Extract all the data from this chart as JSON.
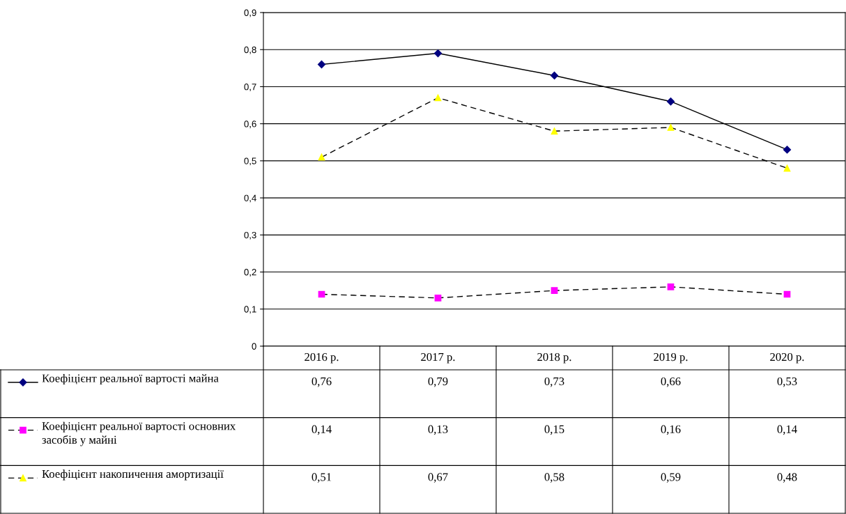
{
  "chart_data": {
    "type": "line",
    "categories": [
      "2016 р.",
      "2017 р.",
      "2018 р.",
      "2019 р.",
      "2020 р."
    ],
    "ylim": [
      0,
      0.9
    ],
    "yticks": [
      0,
      {
        "value": 0.1,
        "label": "0,1"
      },
      {
        "value": 0.2,
        "label": "0,2"
      },
      {
        "value": 0.3,
        "label": "0,3"
      },
      {
        "value": 0.4,
        "label": "0,4"
      },
      {
        "value": 0.5,
        "label": "0,5"
      },
      {
        "value": 0.6,
        "label": "0,6"
      },
      {
        "value": 0.7,
        "label": "0,7"
      },
      {
        "value": 0.8,
        "label": "0,8"
      },
      {
        "value": 0.9,
        "label": "0,9"
      }
    ],
    "grid": "y",
    "legend": "bottom left",
    "series": [
      {
        "name": "Коефіцієнт реальної вартості майна",
        "color": "#000080",
        "marker": "diamond",
        "line_style": "solid",
        "values": [
          0.76,
          0.79,
          0.73,
          0.66,
          0.53
        ],
        "value_labels": [
          "0,76",
          "0,79",
          "0,73",
          "0,66",
          "0,53"
        ]
      },
      {
        "name": "Коефіцієнт реальної вартості основних засобів у майні",
        "color": "#ff00ff",
        "marker": "square",
        "line_style": "dashed",
        "values": [
          0.14,
          0.13,
          0.15,
          0.16,
          0.14
        ],
        "value_labels": [
          "0,14",
          "0,13",
          "0,15",
          "0,16",
          "0,14"
        ]
      },
      {
        "name": "Коефіцієнт накопичення амортизації",
        "color": "#ffff00",
        "marker": "triangle",
        "line_style": "dashed",
        "values": [
          0.51,
          0.67,
          0.58,
          0.59,
          0.48
        ],
        "value_labels": [
          "0,51",
          "0,67",
          "0,58",
          "0,59",
          "0,48"
        ]
      }
    ]
  }
}
